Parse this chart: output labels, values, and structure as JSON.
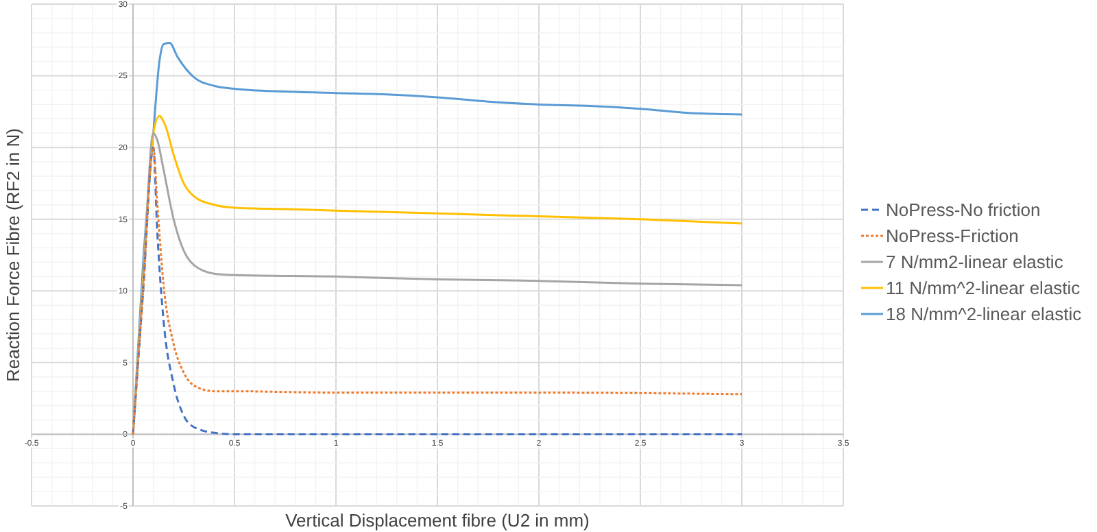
{
  "chart_data": {
    "type": "line",
    "xlabel": "Vertical Displacement fibre (U2 in mm)",
    "ylabel": "Reaction Force Fibre (RF2 in N)",
    "xlim": [
      -0.5,
      3.5
    ],
    "xticks": [
      -0.5,
      0,
      0.5,
      1,
      1.5,
      2,
      2.5,
      3,
      3.5
    ],
    "ylim": [
      -5,
      30
    ],
    "yticks": [
      -5,
      0,
      5,
      10,
      15,
      20,
      25,
      30
    ],
    "grid": true,
    "legend": "right",
    "marker": "none",
    "series": [
      {
        "name": "NoPress-No friction",
        "color": "#4472c4",
        "line_style": "dashed",
        "x": [
          0,
          0.05,
          0.1,
          0.12,
          0.15,
          0.2,
          0.25,
          0.3,
          0.4,
          0.5,
          1,
          3
        ],
        "values": [
          0,
          10,
          20,
          14,
          8,
          3.5,
          1.3,
          0.5,
          0.1,
          0,
          0,
          0
        ]
      },
      {
        "name": "NoPress-Friction",
        "color": "#ed7d31",
        "line_style": "dotted",
        "x": [
          0,
          0.05,
          0.1,
          0.12,
          0.15,
          0.2,
          0.25,
          0.3,
          0.4,
          0.5,
          1,
          2,
          3
        ],
        "values": [
          0,
          10,
          20,
          16,
          10.5,
          6.3,
          4.3,
          3.4,
          3.0,
          3.0,
          2.9,
          2.9,
          2.8
        ]
      },
      {
        "name": "7 N/mm2-linear elastic",
        "color": "#a5a5a5",
        "line_style": "solid",
        "x": [
          0,
          0.05,
          0.1,
          0.12,
          0.15,
          0.2,
          0.25,
          0.3,
          0.4,
          0.5,
          1,
          1.5,
          2,
          2.5,
          3
        ],
        "values": [
          0,
          10.5,
          21,
          20.5,
          18.5,
          15,
          12.8,
          11.8,
          11.2,
          11.1,
          11.0,
          10.8,
          10.7,
          10.5,
          10.4
        ]
      },
      {
        "name": "11 N/mm^2-linear elastic",
        "color": "#ffc000",
        "line_style": "solid",
        "x": [
          0,
          0.05,
          0.1,
          0.13,
          0.16,
          0.2,
          0.25,
          0.3,
          0.4,
          0.5,
          0.75,
          1,
          1.5,
          2,
          2.5,
          3
        ],
        "values": [
          0,
          11,
          21,
          22.2,
          21.5,
          19.5,
          17.5,
          16.6,
          16.0,
          15.8,
          15.7,
          15.6,
          15.4,
          15.2,
          15.0,
          14.7
        ]
      },
      {
        "name": "18 N/mm^2-linear elastic",
        "color": "#5b9bd5",
        "line_style": "solid",
        "x": [
          0,
          0.05,
          0.1,
          0.13,
          0.15,
          0.18,
          0.22,
          0.3,
          0.4,
          0.5,
          0.75,
          1,
          1.25,
          1.5,
          1.75,
          2,
          2.25,
          2.5,
          2.75,
          3
        ],
        "values": [
          0,
          12,
          21,
          26,
          27.2,
          27.3,
          26.3,
          24.9,
          24.3,
          24.1,
          23.9,
          23.8,
          23.7,
          23.5,
          23.2,
          23.0,
          22.9,
          22.7,
          22.4,
          22.3
        ]
      }
    ]
  }
}
